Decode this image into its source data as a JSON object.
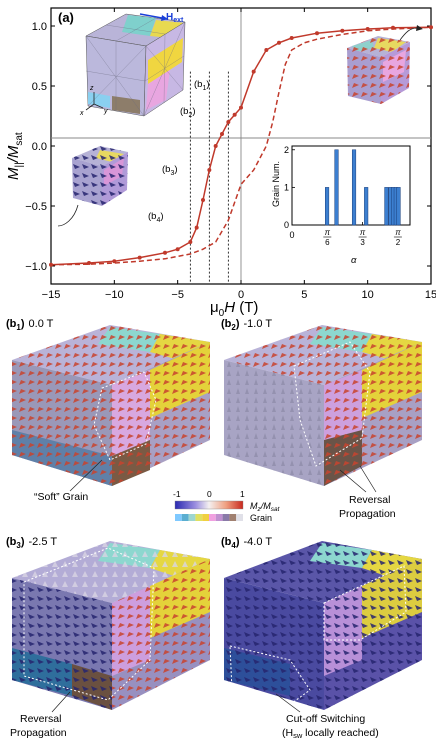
{
  "panel_a": {
    "label": "(a)",
    "field_label": "H",
    "field_sub": "ext",
    "axes_glyphs": {
      "z": "z",
      "x": "x",
      "y": "y"
    },
    "markers": [
      {
        "label": "(b",
        "sub": "1",
        "close": ")"
      },
      {
        "label": "(b",
        "sub": "2",
        "close": ")"
      },
      {
        "label": "(b",
        "sub": "3",
        "close": ")"
      },
      {
        "label": "(b",
        "sub": "4",
        "close": ")"
      }
    ]
  },
  "panel_b": [
    {
      "label": "(b",
      "sub": "1",
      "close": ")",
      "value": "0.0 T"
    },
    {
      "label": "(b",
      "sub": "2",
      "close": ")",
      "value": "-1.0 T"
    },
    {
      "label": "(b",
      "sub": "3",
      "close": ")",
      "value": "-2.5 T"
    },
    {
      "label": "(b",
      "sub": "4",
      "close": ")",
      "value": "-4.0 T"
    }
  ],
  "annotations": {
    "soft_grain": "“Soft” Grain",
    "reversal_1": "Reversal",
    "reversal_2": "Propagation",
    "reversal_b3_1": "Reversal",
    "reversal_b3_2": "Propagation",
    "cutoff_1": "Cut-off Switching",
    "cutoff_2_pre": "(H",
    "cutoff_2_sub": "sw",
    "cutoff_2_post": " locally reached)"
  },
  "colorbar": {
    "min": "-1",
    "mid": "0",
    "max": "1",
    "label": "M",
    "label_sub": "z",
    "label_slash": "/M",
    "label_sub2": "sat",
    "grain_label": "Grain",
    "gradient": [
      "#2a2ab0",
      "#9a8ee0",
      "#f4f0f0",
      "#f0a080",
      "#c8281e"
    ],
    "grain_colors": [
      "#7fc9ff",
      "#5aaed0",
      "#9dd6d0",
      "#e0e060",
      "#f0d040",
      "#f0a0e0",
      "#c090d0",
      "#8a7aa8",
      "#a08070",
      "#e0e0e8"
    ]
  },
  "colors": {
    "loop_line": "#c0392b",
    "axis": "#000000",
    "zero_lines": "#888888"
  },
  "chart_data": [
    {
      "type": "line",
      "xlabel": "μ0H (T)",
      "ylabel": "M||/Msat",
      "xlim": [
        -15,
        15
      ],
      "ylim": [
        -1.15,
        1.15
      ],
      "xticks": [
        -15,
        -10,
        -5,
        0,
        5,
        10,
        15
      ],
      "yticks": [
        -1.0,
        -0.5,
        0.0,
        0.5,
        1.0
      ],
      "grid": false,
      "series": [
        {
          "style": "solid-with-markers",
          "x": [
            15,
            12,
            10,
            8,
            6,
            4,
            3,
            2,
            1,
            0,
            -0.5,
            -1,
            -1.5,
            -2,
            -2.5,
            -3,
            -3.5,
            -4,
            -5,
            -6,
            -8,
            -10,
            -12,
            -15
          ],
          "y": [
            0.99,
            0.985,
            0.975,
            0.96,
            0.94,
            0.9,
            0.86,
            0.8,
            0.62,
            0.32,
            0.26,
            0.2,
            0.1,
            0.0,
            -0.2,
            -0.45,
            -0.68,
            -0.8,
            -0.86,
            -0.89,
            -0.93,
            -0.96,
            -0.975,
            -0.99
          ]
        },
        {
          "style": "dashed",
          "x": [
            -15,
            -12,
            -10,
            -8,
            -6,
            -4,
            -3,
            -2,
            -1,
            0,
            0.5,
            1,
            1.5,
            2,
            2.5,
            3,
            3.5,
            4,
            5,
            6,
            8,
            10,
            12,
            15
          ],
          "y": [
            -0.99,
            -0.985,
            -0.975,
            -0.96,
            -0.94,
            -0.9,
            -0.86,
            -0.8,
            -0.62,
            -0.32,
            -0.26,
            -0.2,
            -0.1,
            0.0,
            0.2,
            0.45,
            0.68,
            0.8,
            0.86,
            0.89,
            0.93,
            0.96,
            0.975,
            0.99
          ]
        }
      ],
      "reference_lines_x": [
        -4.0,
        -2.5,
        -1.0
      ]
    },
    {
      "type": "bar",
      "xlabel": "α",
      "ylabel": "Grain Num.",
      "ylim": [
        0,
        2.1
      ],
      "yticks": [
        0,
        1,
        2
      ],
      "xtick_labels": [
        "0",
        "π/6",
        "π/3",
        "π/2"
      ],
      "xtick_values": [
        0,
        0.5236,
        1.0472,
        1.5708
      ],
      "bar_x": [
        0.52,
        0.66,
        0.92,
        1.1,
        1.4,
        1.46,
        1.5,
        1.54,
        1.58
      ],
      "values": [
        1,
        2,
        2,
        1,
        1,
        1,
        1,
        1,
        1
      ]
    }
  ]
}
